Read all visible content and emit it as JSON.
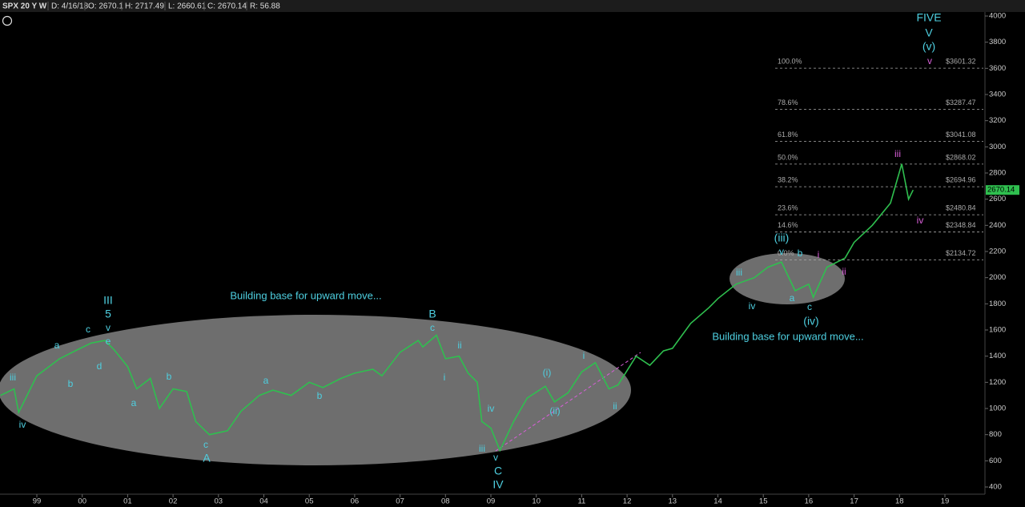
{
  "header": [
    "SPX 20 Y W",
    "D: 4/16/18",
    "O: 2670.1",
    "H: 2717.49",
    "L: 2660.61",
    "C: 2670.14",
    "R: 56.88"
  ],
  "chart_data": {
    "type": "line",
    "x": [
      1998.2,
      1998.5,
      1998.6,
      1999.0,
      1999.5,
      1999.9,
      2000.2,
      2000.5,
      2000.7,
      2001.0,
      2001.2,
      2001.5,
      2001.7,
      2002.0,
      2002.3,
      2002.5,
      2002.8,
      2003.2,
      2003.5,
      2003.9,
      2004.2,
      2004.6,
      2005.0,
      2005.3,
      2005.7,
      2006.0,
      2006.4,
      2006.6,
      2007.0,
      2007.4,
      2007.5,
      2007.8,
      2008.0,
      2008.3,
      2008.5,
      2008.7,
      2008.8,
      2009.0,
      2009.2,
      2009.5,
      2009.8,
      2010.2,
      2010.4,
      2010.7,
      2011.0,
      2011.3,
      2011.6,
      2011.8,
      2012.2,
      2012.5,
      2012.8,
      2013.0,
      2013.4,
      2013.8,
      2014.0,
      2014.4,
      2014.8,
      2015.1,
      2015.4,
      2015.7,
      2016.0,
      2016.1,
      2016.4,
      2016.8,
      2017.0,
      2017.4,
      2017.8,
      2018.05,
      2018.2,
      2018.3
    ],
    "series": [
      {
        "name": "SPX",
        "color": "#2fbf4f",
        "values": [
          1100,
          1150,
          970,
          1250,
          1380,
          1450,
          1500,
          1520,
          1450,
          1320,
          1150,
          1230,
          1000,
          1150,
          1130,
          900,
          800,
          830,
          980,
          1100,
          1140,
          1100,
          1200,
          1160,
          1230,
          1270,
          1300,
          1250,
          1430,
          1520,
          1470,
          1560,
          1380,
          1400,
          1270,
          1200,
          900,
          850,
          680,
          900,
          1080,
          1170,
          1050,
          1120,
          1280,
          1350,
          1150,
          1180,
          1400,
          1330,
          1440,
          1460,
          1650,
          1770,
          1840,
          1950,
          2000,
          2080,
          2120,
          1900,
          1950,
          1850,
          2080,
          2150,
          2270,
          2400,
          2570,
          2870,
          2600,
          2670
        ]
      }
    ],
    "xlim": [
      1998.2,
      2019.9
    ],
    "ylim": [
      400,
      4000
    ],
    "xticks": [
      {
        "value": 1999,
        "label": "99"
      },
      {
        "value": 2000,
        "label": "00"
      },
      {
        "value": 2001,
        "label": "01"
      },
      {
        "value": 2002,
        "label": "02"
      },
      {
        "value": 2003,
        "label": "03"
      },
      {
        "value": 2004,
        "label": "04"
      },
      {
        "value": 2005,
        "label": "05"
      },
      {
        "value": 2006,
        "label": "06"
      },
      {
        "value": 2007,
        "label": "07"
      },
      {
        "value": 2008,
        "label": "08"
      },
      {
        "value": 2009,
        "label": "09"
      },
      {
        "value": 2010,
        "label": "10"
      },
      {
        "value": 2011,
        "label": "11"
      },
      {
        "value": 2012,
        "label": "12"
      },
      {
        "value": 2013,
        "label": "13"
      },
      {
        "value": 2014,
        "label": "14"
      },
      {
        "value": 2015,
        "label": "15"
      },
      {
        "value": 2016,
        "label": "16"
      },
      {
        "value": 2017,
        "label": "17"
      },
      {
        "value": 2018,
        "label": "18"
      },
      {
        "value": 2019,
        "label": "19"
      }
    ],
    "yticks": [
      400,
      600,
      800,
      1000,
      1200,
      1400,
      1600,
      1800,
      2000,
      2200,
      2400,
      2600,
      2800,
      3000,
      3200,
      3400,
      3600,
      3800,
      4000
    ],
    "last_price": {
      "value": 2670.14,
      "label": "2670.14"
    },
    "fib_levels": [
      {
        "ratio": "100.0%",
        "value": 3601.32,
        "label": "$3601.32"
      },
      {
        "ratio": "78.6%",
        "value": 3287.47,
        "label": "$3287.47"
      },
      {
        "ratio": "61.8%",
        "value": 3041.08,
        "label": "$3041.08"
      },
      {
        "ratio": "50.0%",
        "value": 2868.02,
        "label": "$2868.02"
      },
      {
        "ratio": "38.2%",
        "value": 2694.96,
        "label": "$2694.96"
      },
      {
        "ratio": "23.6%",
        "value": 2480.84,
        "label": "$2480.84"
      },
      {
        "ratio": "14.6%",
        "value": 2348.84,
        "label": "$2348.84"
      },
      {
        "ratio": "0.0%",
        "value": 2134.72,
        "label": "$2134.72"
      }
    ],
    "notes": [
      "Building base for upward move...",
      "Building base for upward move..."
    ],
    "annotations": [
      {
        "text": "iii",
        "color": "#4ecfe0"
      },
      {
        "text": "iv",
        "color": "#4ecfe0"
      },
      {
        "text": "a",
        "color": "#4ecfe0"
      },
      {
        "text": "b",
        "color": "#4ecfe0"
      },
      {
        "text": "c",
        "color": "#4ecfe0"
      },
      {
        "text": "d",
        "color": "#4ecfe0"
      },
      {
        "text": "III",
        "color": "#4ecfe0"
      },
      {
        "text": "5",
        "color": "#4ecfe0"
      },
      {
        "text": "v",
        "color": "#4ecfe0"
      },
      {
        "text": "e",
        "color": "#4ecfe0"
      },
      {
        "text": "a",
        "color": "#4ecfe0"
      },
      {
        "text": "b",
        "color": "#4ecfe0"
      },
      {
        "text": "c",
        "color": "#4ecfe0"
      },
      {
        "text": "A",
        "color": "#4ecfe0"
      },
      {
        "text": "a",
        "color": "#4ecfe0"
      },
      {
        "text": "b",
        "color": "#4ecfe0"
      },
      {
        "text": "B",
        "color": "#4ecfe0"
      },
      {
        "text": "c",
        "color": "#4ecfe0"
      },
      {
        "text": "ii",
        "color": "#4ecfe0"
      },
      {
        "text": "i",
        "color": "#4ecfe0"
      },
      {
        "text": "iv",
        "color": "#4ecfe0"
      },
      {
        "text": "iii",
        "color": "#4ecfe0"
      },
      {
        "text": "v",
        "color": "#4ecfe0"
      },
      {
        "text": "C",
        "color": "#4ecfe0"
      },
      {
        "text": "IV",
        "color": "#4ecfe0"
      },
      {
        "text": "(i)",
        "color": "#4ecfe0"
      },
      {
        "text": "(ii)",
        "color": "#4ecfe0"
      },
      {
        "text": "i",
        "color": "#4ecfe0"
      },
      {
        "text": "ii",
        "color": "#4ecfe0"
      },
      {
        "text": "iii",
        "color": "#4ecfe0"
      },
      {
        "text": "iv",
        "color": "#4ecfe0"
      },
      {
        "text": "(iii)",
        "color": "#4ecfe0"
      },
      {
        "text": "v",
        "color": "#4ecfe0"
      },
      {
        "text": "b",
        "color": "#4ecfe0"
      },
      {
        "text": "a",
        "color": "#4ecfe0"
      },
      {
        "text": "c",
        "color": "#4ecfe0"
      },
      {
        "text": "(iv)",
        "color": "#4ecfe0"
      },
      {
        "text": "i",
        "color": "#d95fd9"
      },
      {
        "text": "ii",
        "color": "#d95fd9"
      },
      {
        "text": "iii",
        "color": "#d95fd9"
      },
      {
        "text": "iv",
        "color": "#d95fd9"
      },
      {
        "text": "FIVE",
        "color": "#4ecfe0"
      },
      {
        "text": "V",
        "color": "#4ecfe0"
      },
      {
        "text": "(v)",
        "color": "#4ecfe0"
      },
      {
        "text": "v",
        "color": "#d95fd9"
      }
    ]
  }
}
